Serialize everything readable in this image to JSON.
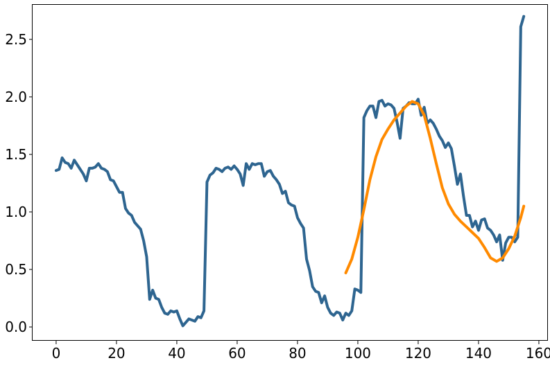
{
  "chart_data": {
    "type": "line",
    "title": "",
    "xlabel": "",
    "ylabel": "",
    "xlim": [
      -7.8,
      163
    ],
    "ylim": [
      -0.12,
      2.8
    ],
    "grid": false,
    "x_ticks": [
      0,
      20,
      40,
      60,
      80,
      100,
      120,
      140,
      160
    ],
    "y_ticks": [
      0.0,
      0.5,
      1.0,
      1.5,
      2.0,
      2.5
    ],
    "x_tick_labels": [
      "0",
      "20",
      "40",
      "60",
      "80",
      "100",
      "120",
      "140",
      "160"
    ],
    "y_tick_labels": [
      "0.0",
      "0.5",
      "1.0",
      "1.5",
      "2.0",
      "2.5"
    ],
    "series": [
      {
        "color": "#2e6590",
        "x": [
          0,
          1,
          2,
          3,
          4,
          5,
          6,
          7,
          8,
          9,
          10,
          11,
          12,
          13,
          14,
          15,
          16,
          17,
          18,
          19,
          20,
          21,
          22,
          23,
          24,
          25,
          26,
          27,
          28,
          29,
          30,
          31,
          32,
          33,
          34,
          35,
          36,
          37,
          38,
          39,
          40,
          41,
          42,
          43,
          44,
          45,
          46,
          47,
          48,
          49,
          50,
          51,
          52,
          53,
          54,
          55,
          56,
          57,
          58,
          59,
          60,
          61,
          62,
          63,
          64,
          65,
          66,
          67,
          68,
          69,
          70,
          71,
          72,
          73,
          74,
          75,
          76,
          77,
          78,
          79,
          80,
          81,
          82,
          83,
          84,
          85,
          86,
          87,
          88,
          89,
          90,
          91,
          92,
          93,
          94,
          95,
          96,
          97,
          98,
          99,
          100,
          101,
          102,
          103,
          104,
          105,
          106,
          107,
          108,
          109,
          110,
          111,
          112,
          113,
          114,
          115,
          116,
          117,
          118,
          119,
          120,
          121,
          122,
          123,
          124,
          125,
          126,
          127,
          128,
          129,
          130,
          131,
          132,
          133,
          134,
          135,
          136,
          137,
          138,
          139,
          140,
          141,
          142,
          143,
          144,
          145,
          146,
          147,
          148,
          149,
          150,
          151,
          152,
          153,
          154,
          155
        ],
        "values": [
          1.36,
          1.37,
          1.47,
          1.43,
          1.42,
          1.38,
          1.45,
          1.41,
          1.37,
          1.33,
          1.27,
          1.38,
          1.38,
          1.39,
          1.42,
          1.38,
          1.37,
          1.35,
          1.28,
          1.27,
          1.22,
          1.17,
          1.17,
          1.03,
          0.99,
          0.97,
          0.91,
          0.88,
          0.85,
          0.75,
          0.61,
          0.24,
          0.32,
          0.25,
          0.24,
          0.17,
          0.12,
          0.11,
          0.14,
          0.13,
          0.14,
          0.07,
          0.01,
          0.04,
          0.07,
          0.06,
          0.05,
          0.09,
          0.08,
          0.14,
          1.26,
          1.32,
          1.34,
          1.38,
          1.37,
          1.35,
          1.38,
          1.39,
          1.37,
          1.4,
          1.37,
          1.33,
          1.23,
          1.42,
          1.37,
          1.42,
          1.41,
          1.42,
          1.42,
          1.31,
          1.35,
          1.36,
          1.31,
          1.28,
          1.24,
          1.16,
          1.18,
          1.08,
          1.06,
          1.05,
          0.95,
          0.9,
          0.86,
          0.59,
          0.49,
          0.35,
          0.31,
          0.3,
          0.21,
          0.27,
          0.17,
          0.12,
          0.1,
          0.13,
          0.12,
          0.06,
          0.12,
          0.1,
          0.14,
          0.33,
          0.32,
          0.3,
          1.82,
          1.88,
          1.92,
          1.92,
          1.82,
          1.96,
          1.97,
          1.92,
          1.94,
          1.93,
          1.9,
          1.78,
          1.64,
          1.9,
          1.92,
          1.95,
          1.94,
          1.94,
          1.98,
          1.84,
          1.91,
          1.77,
          1.8,
          1.77,
          1.72,
          1.66,
          1.62,
          1.56,
          1.6,
          1.55,
          1.4,
          1.24,
          1.33,
          1.14,
          0.97,
          0.97,
          0.87,
          0.92,
          0.84,
          0.93,
          0.94,
          0.86,
          0.84,
          0.8,
          0.74,
          0.8,
          0.58,
          0.73,
          0.78,
          0.78,
          0.74,
          0.78,
          2.61,
          2.7
        ]
      },
      {
        "color": "#ff8a00",
        "x": [
          96,
          98,
          100,
          102,
          104,
          106,
          108,
          110,
          112,
          114,
          116,
          118,
          120,
          122,
          124,
          126,
          128,
          130,
          132,
          134,
          136,
          138,
          140,
          142,
          144,
          146,
          148,
          150,
          152,
          154,
          155
        ],
        "values": [
          0.47,
          0.59,
          0.78,
          1.02,
          1.28,
          1.48,
          1.63,
          1.72,
          1.8,
          1.86,
          1.92,
          1.96,
          1.94,
          1.84,
          1.64,
          1.42,
          1.21,
          1.07,
          0.98,
          0.92,
          0.87,
          0.82,
          0.77,
          0.69,
          0.6,
          0.57,
          0.6,
          0.68,
          0.79,
          0.95,
          1.05
        ]
      }
    ]
  }
}
